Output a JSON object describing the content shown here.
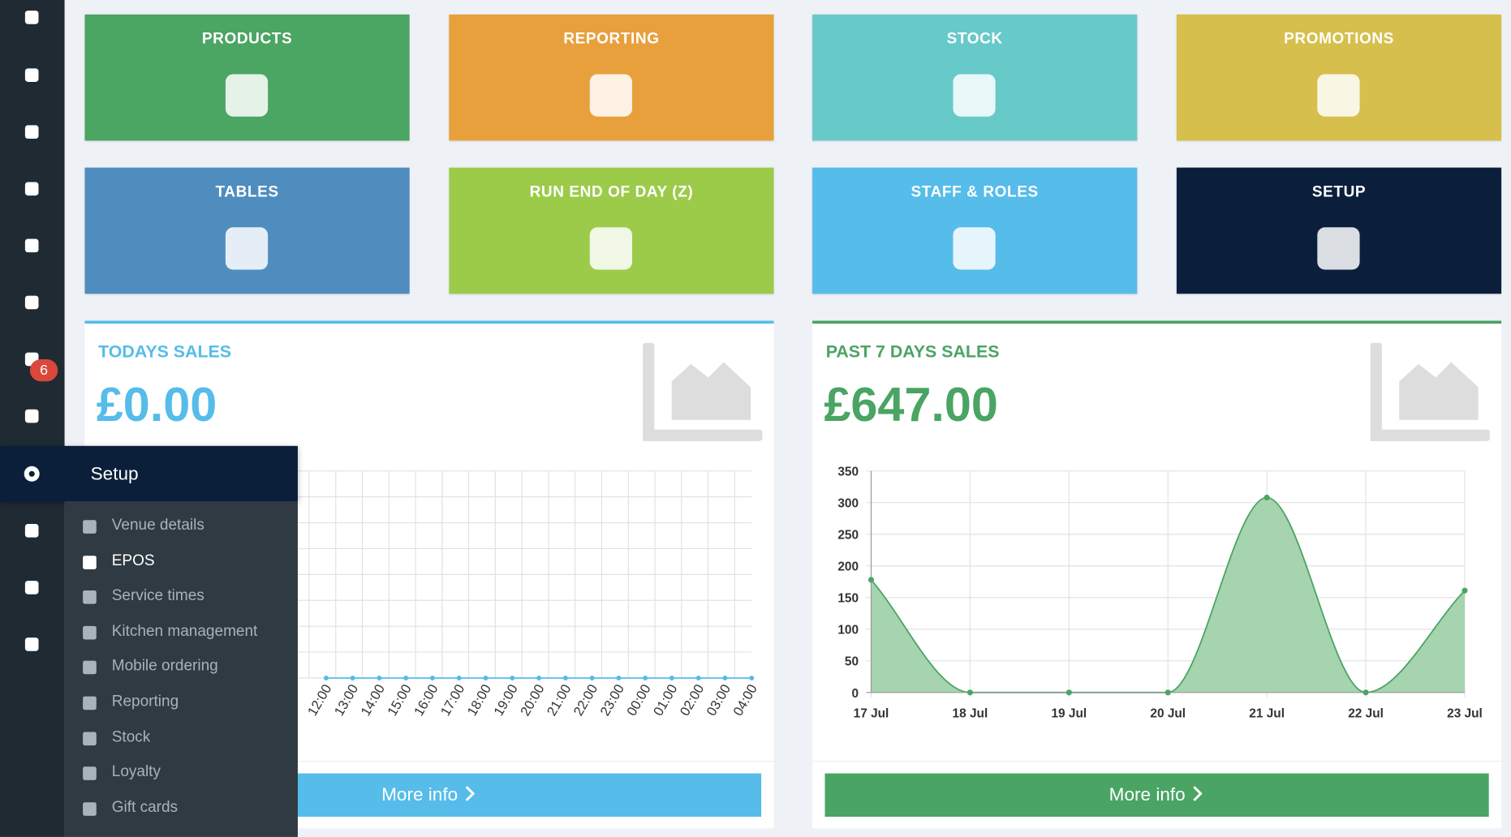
{
  "sidebar": {
    "badge": "6"
  },
  "menu": {
    "title": "Setup",
    "items": [
      "Venue details",
      "EPOS",
      "Service times",
      "Kitchen management",
      "Mobile ordering",
      "Reporting",
      "Stock",
      "Loyalty",
      "Gift cards"
    ]
  },
  "tiles": [
    {
      "label": "PRODUCTS",
      "color": "#4ba563"
    },
    {
      "label": "REPORTING",
      "color": "#e8a03c"
    },
    {
      "label": "STOCK",
      "color": "#68c9c9"
    },
    {
      "label": "PROMOTIONS",
      "color": "#d6bf4c"
    },
    {
      "label": "TABLES",
      "color": "#4f8dbf"
    },
    {
      "label": "RUN END OF DAY (Z)",
      "color": "#9ccb4a"
    },
    {
      "label": "STAFF & ROLES",
      "color": "#56bcea"
    },
    {
      "label": "SETUP",
      "color": "#0b1f3d"
    }
  ],
  "panels": [
    {
      "title": "TODAYS SALES",
      "amount": "£0.00",
      "button": "More info",
      "color": "#56bcea"
    },
    {
      "title": "PAST 7 DAYS SALES",
      "amount": "£647.00",
      "button": "More info",
      "color": "#4aa463"
    }
  ],
  "chart_data": [
    {
      "type": "line",
      "color": "#56bcea",
      "categories": [
        "12:00",
        "13:00",
        "14:00",
        "15:00",
        "16:00",
        "17:00",
        "18:00",
        "19:00",
        "20:00",
        "21:00",
        "22:00",
        "23:00",
        "00:00",
        "01:00",
        "02:00",
        "03:00",
        "04:00"
      ],
      "values": [
        0,
        0,
        0,
        0,
        0,
        0,
        0,
        0,
        0,
        0,
        0,
        0,
        0,
        0,
        0,
        0,
        0
      ]
    },
    {
      "type": "area",
      "color": "#4aa463",
      "fill": "#a5d4ae",
      "categories": [
        "17 Jul",
        "18 Jul",
        "19 Jul",
        "20 Jul",
        "21 Jul",
        "22 Jul",
        "23 Jul"
      ],
      "values": [
        178,
        0,
        0,
        0,
        308,
        0,
        161
      ],
      "ylim": [
        0,
        350
      ],
      "yticks": [
        0,
        50,
        100,
        150,
        200,
        250,
        300,
        350
      ],
      "grid": true
    }
  ]
}
